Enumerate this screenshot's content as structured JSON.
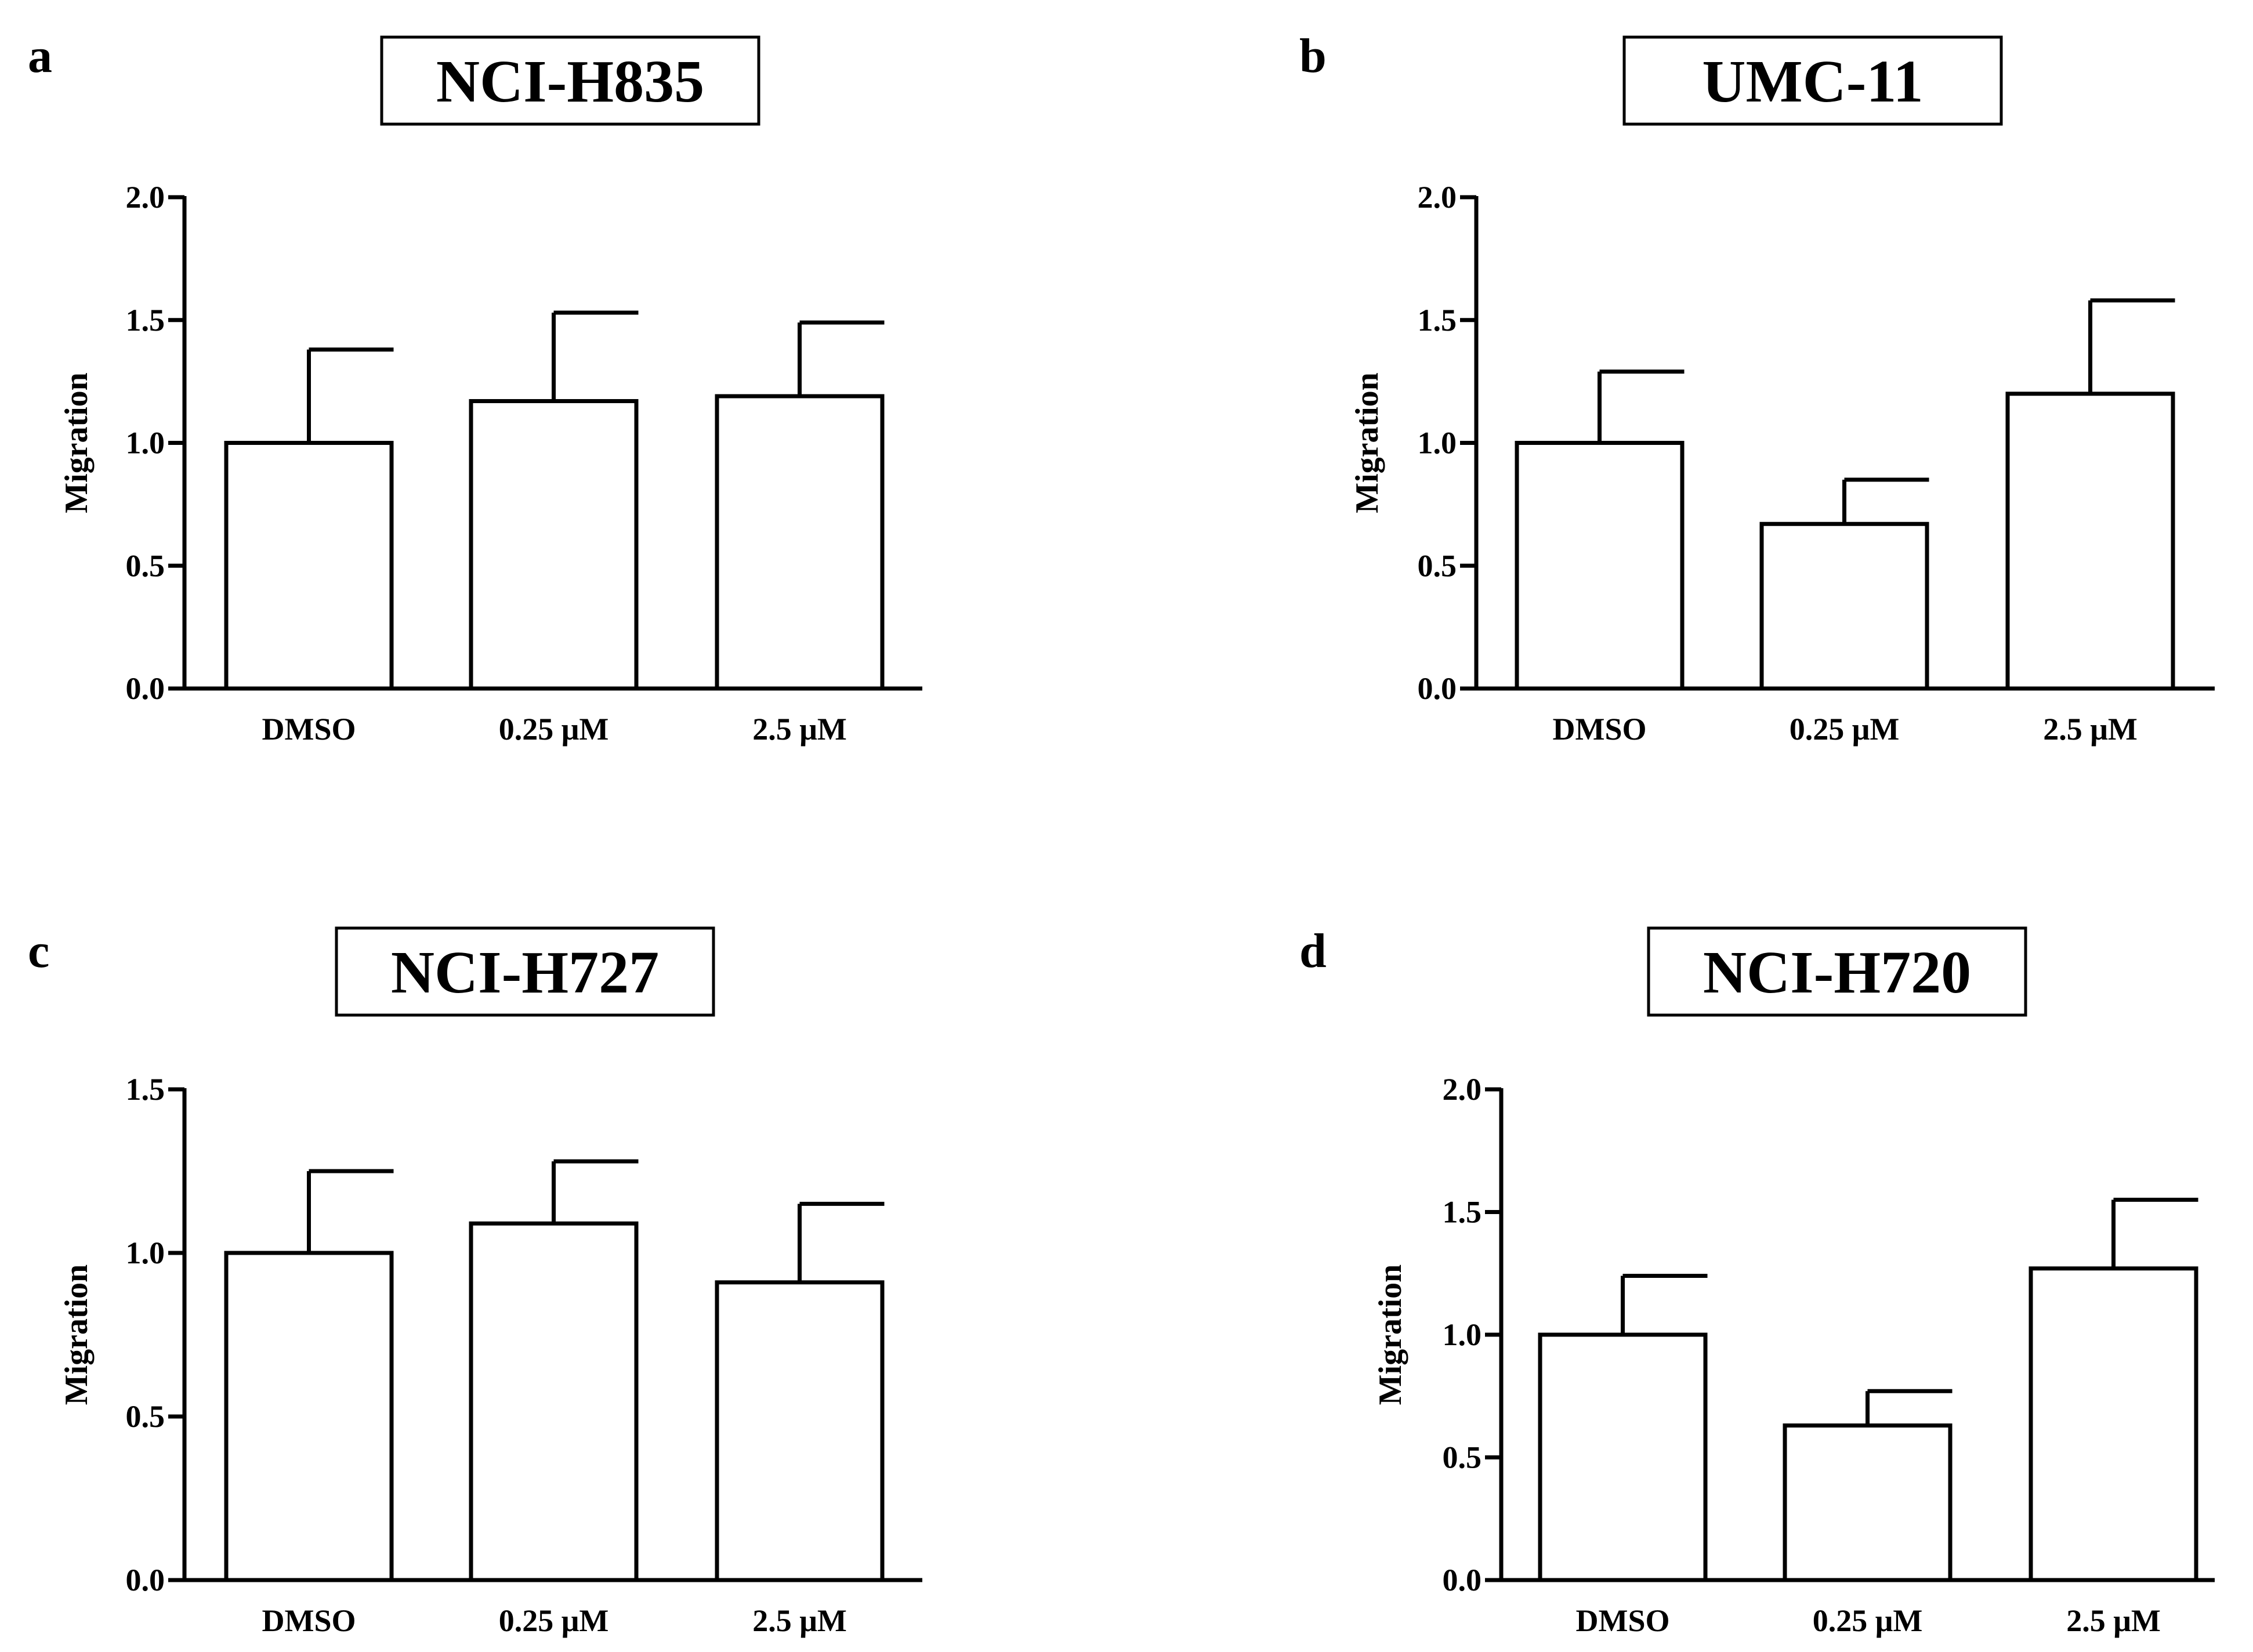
{
  "colors": {
    "ink": "#000000",
    "bar_fill": "#ffffff",
    "background": "#ffffff"
  },
  "chart_data": [
    {
      "type": "bar",
      "panel": "a",
      "title": "NCI-H835",
      "xlabel": "",
      "ylabel": "Migration",
      "categories": [
        "DMSO",
        "0.25 μM",
        "2.5 μM"
      ],
      "values": [
        1.0,
        1.17,
        1.19
      ],
      "error_upper": [
        0.38,
        0.36,
        0.3
      ],
      "ylim": [
        0,
        2.0
      ],
      "yticks": [
        0.0,
        0.5,
        1.0,
        1.5,
        2.0
      ],
      "ytick_labels": [
        "0.0",
        "0.5",
        "1.0",
        "1.5",
        "2.0"
      ],
      "grid": false
    },
    {
      "type": "bar",
      "panel": "b",
      "title": "UMC-11",
      "xlabel": "",
      "ylabel": "Migration",
      "categories": [
        "DMSO",
        "0.25 μM",
        "2.5 μM"
      ],
      "values": [
        1.0,
        0.67,
        1.2
      ],
      "error_upper": [
        0.29,
        0.18,
        0.38
      ],
      "ylim": [
        0,
        2.0
      ],
      "yticks": [
        0.0,
        0.5,
        1.0,
        1.5,
        2.0
      ],
      "ytick_labels": [
        "0.0",
        "0.5",
        "1.0",
        "1.5",
        "2.0"
      ],
      "grid": false
    },
    {
      "type": "bar",
      "panel": "c",
      "title": "NCI-H727",
      "xlabel": "",
      "ylabel": "Migration",
      "categories": [
        "DMSO",
        "0.25 μM",
        "2.5 μM"
      ],
      "values": [
        1.0,
        1.09,
        0.91
      ],
      "error_upper": [
        0.25,
        0.19,
        0.24
      ],
      "ylim": [
        0,
        1.5
      ],
      "yticks": [
        0.0,
        0.5,
        1.0,
        1.5
      ],
      "ytick_labels": [
        "0.0",
        "0.5",
        "1.0",
        "1.5"
      ],
      "grid": false
    },
    {
      "type": "bar",
      "panel": "d",
      "title": "NCI-H720",
      "xlabel": "",
      "ylabel": "Migration",
      "categories": [
        "DMSO",
        "0.25 μM",
        "2.5 μM"
      ],
      "values": [
        1.0,
        0.63,
        1.27
      ],
      "error_upper": [
        0.24,
        0.14,
        0.28
      ],
      "ylim": [
        0,
        2.0
      ],
      "yticks": [
        0.0,
        0.5,
        1.0,
        1.5,
        2.0
      ],
      "ytick_labels": [
        "0.0",
        "0.5",
        "1.0",
        "1.5",
        "2.0"
      ],
      "grid": false
    }
  ]
}
